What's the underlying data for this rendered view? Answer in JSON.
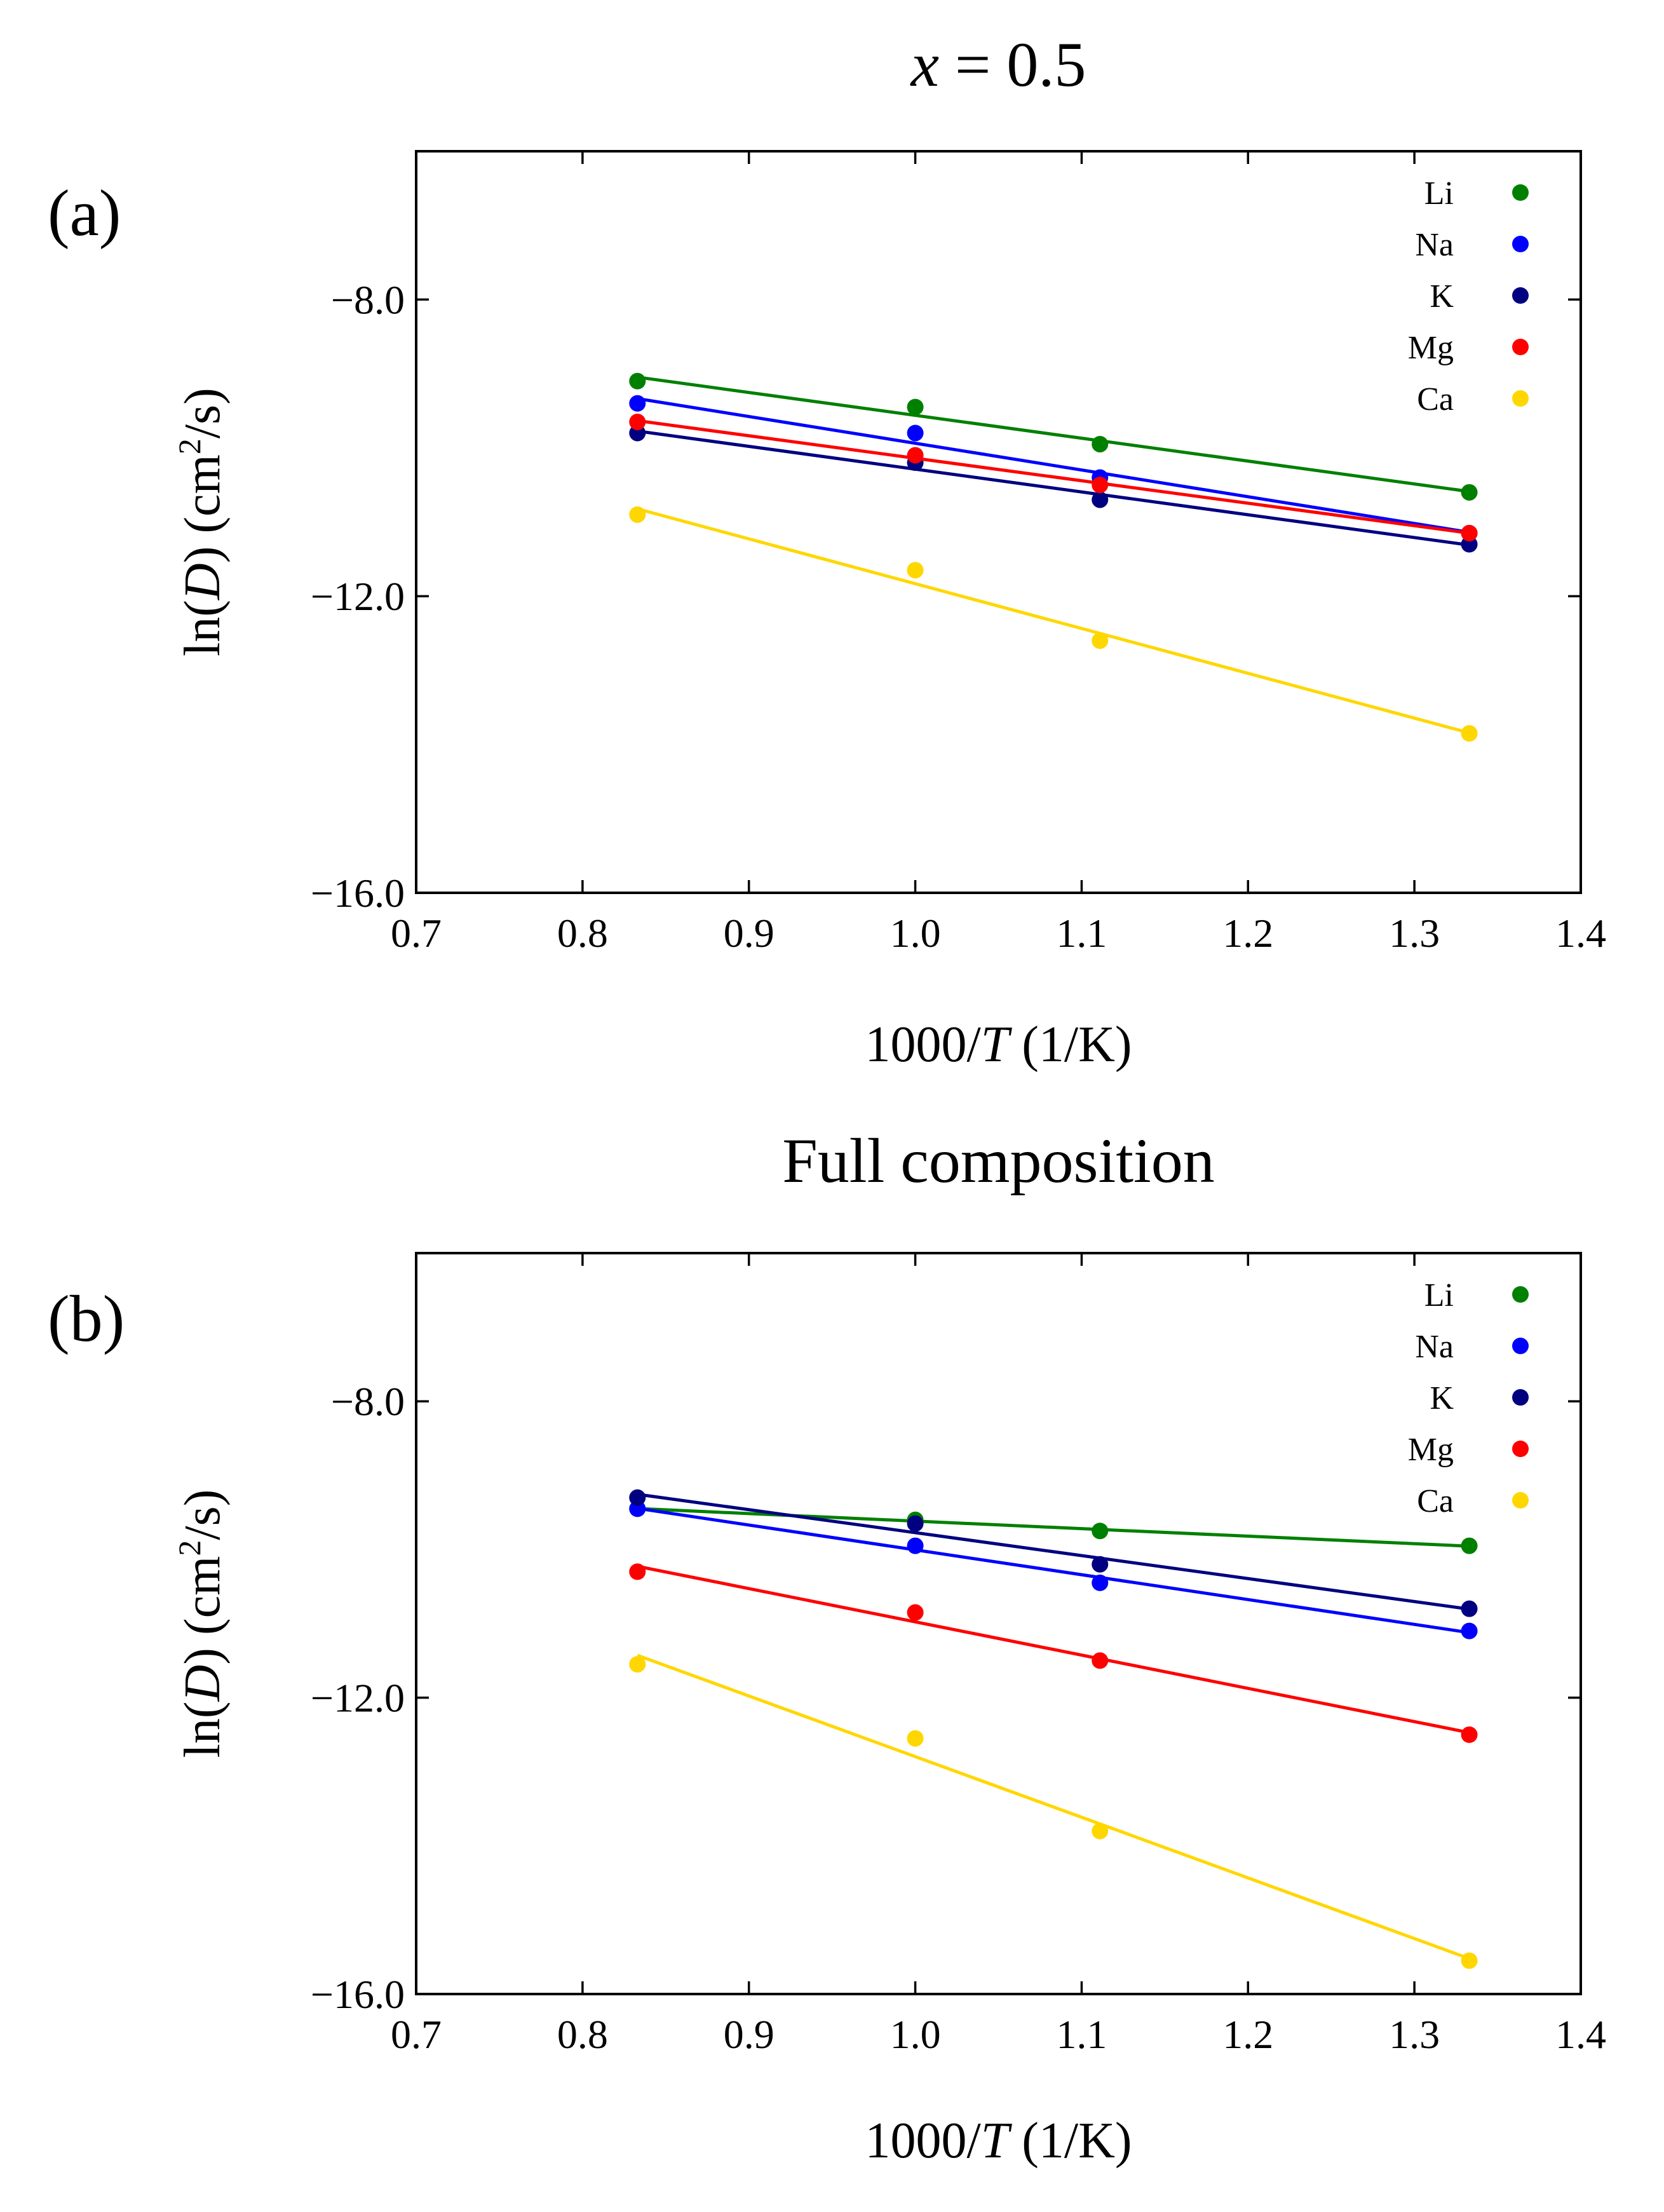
{
  "figure": {
    "panels": [
      {
        "label": "(a)",
        "title_var": "x",
        "title_rest": " = 0.5"
      },
      {
        "label": "(b)",
        "title_var": "",
        "title_rest": "Full composition"
      }
    ]
  },
  "chart_data": [
    {
      "type": "scatter",
      "title": "x = 0.5",
      "panel_label": "(a)",
      "xlabel": "1000/T (1/K)",
      "ylabel": "ln(D) (cm²/s)",
      "xlabel_parts": {
        "pre": "1000/",
        "var": "T",
        "post": " (1/K)"
      },
      "ylabel_parts": {
        "pre": "ln(",
        "var": "D",
        "mid": ") (cm",
        "sup": "2",
        "post": "/s)"
      },
      "xlim": [
        0.7,
        1.4
      ],
      "ylim": [
        -16.0,
        -6.0
      ],
      "xticks": [
        0.7,
        0.8,
        0.9,
        1.0,
        1.1,
        1.2,
        1.3,
        1.4
      ],
      "xtick_labels": [
        "0.7",
        "0.8",
        "0.9",
        "1.0",
        "1.1",
        "1.2",
        "1.3",
        "1.4"
      ],
      "yticks": [
        -16.0,
        -12.0,
        -8.0
      ],
      "ytick_labels": [
        "−16.0",
        "−12.0",
        "−8.0"
      ],
      "legend_position": "top-right",
      "x": [
        0.833,
        1.0,
        1.111,
        1.333
      ],
      "series": [
        {
          "name": "Li",
          "color": "#008000",
          "values": [
            -9.1,
            -9.45,
            -9.95,
            -10.6
          ]
        },
        {
          "name": "Na",
          "color": "#0000ff",
          "values": [
            -9.4,
            -9.8,
            -10.4,
            -11.15
          ]
        },
        {
          "name": "K",
          "color": "#000080",
          "values": [
            -9.8,
            -10.2,
            -10.7,
            -11.3
          ]
        },
        {
          "name": "Mg",
          "color": "#ff0000",
          "values": [
            -9.65,
            -10.1,
            -10.5,
            -11.15
          ]
        },
        {
          "name": "Ca",
          "color": "#ffd700",
          "values": [
            -10.9,
            -11.65,
            -12.6,
            -13.85
          ]
        }
      ]
    },
    {
      "type": "scatter",
      "title": "Full composition",
      "panel_label": "(b)",
      "xlabel": "1000/T (1/K)",
      "ylabel": "ln(D) (cm²/s)",
      "xlabel_parts": {
        "pre": "1000/",
        "var": "T",
        "post": " (1/K)"
      },
      "ylabel_parts": {
        "pre": "ln(",
        "var": "D",
        "mid": ") (cm",
        "sup": "2",
        "post": "/s)"
      },
      "xlim": [
        0.7,
        1.4
      ],
      "ylim": [
        -16.0,
        -6.0
      ],
      "xticks": [
        0.7,
        0.8,
        0.9,
        1.0,
        1.1,
        1.2,
        1.3,
        1.4
      ],
      "xtick_labels": [
        "0.7",
        "0.8",
        "0.9",
        "1.0",
        "1.1",
        "1.2",
        "1.3",
        "1.4"
      ],
      "yticks": [
        -16.0,
        -12.0,
        -8.0
      ],
      "ytick_labels": [
        "−16.0",
        "−12.0",
        "−8.0"
      ],
      "legend_position": "top-right",
      "x": [
        0.833,
        1.0,
        1.111,
        1.333
      ],
      "series": [
        {
          "name": "Li",
          "color": "#008000",
          "values": [
            -9.45,
            -9.6,
            -9.75,
            -9.95
          ]
        },
        {
          "name": "Na",
          "color": "#0000ff",
          "values": [
            -9.45,
            -9.95,
            -10.45,
            -11.1
          ]
        },
        {
          "name": "K",
          "color": "#000080",
          "values": [
            -9.3,
            -9.65,
            -10.2,
            -10.8
          ]
        },
        {
          "name": "Mg",
          "color": "#ff0000",
          "values": [
            -10.3,
            -10.85,
            -11.5,
            -12.5
          ]
        },
        {
          "name": "Ca",
          "color": "#ffd700",
          "values": [
            -11.55,
            -12.55,
            -13.8,
            -15.55
          ]
        }
      ]
    }
  ]
}
